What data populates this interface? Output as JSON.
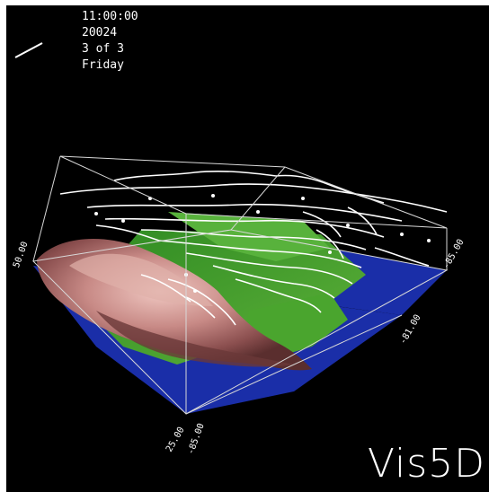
{
  "header": {
    "time": "11:00:00",
    "date": "20024",
    "step": "3 of 3",
    "weekday": "Friday"
  },
  "logo": "Vis5D",
  "axis_labels": {
    "lat_high": "50.00",
    "lon_west": "-85.00",
    "lon_east": "-81.00",
    "lat_low": "25.00",
    "lon_corner": "-85.00"
  },
  "colors": {
    "background": "#000000",
    "water": "#1a2ea8",
    "land": "#3c9a2a",
    "terrain_high": "#c88a86",
    "contours": "#ffffff"
  }
}
